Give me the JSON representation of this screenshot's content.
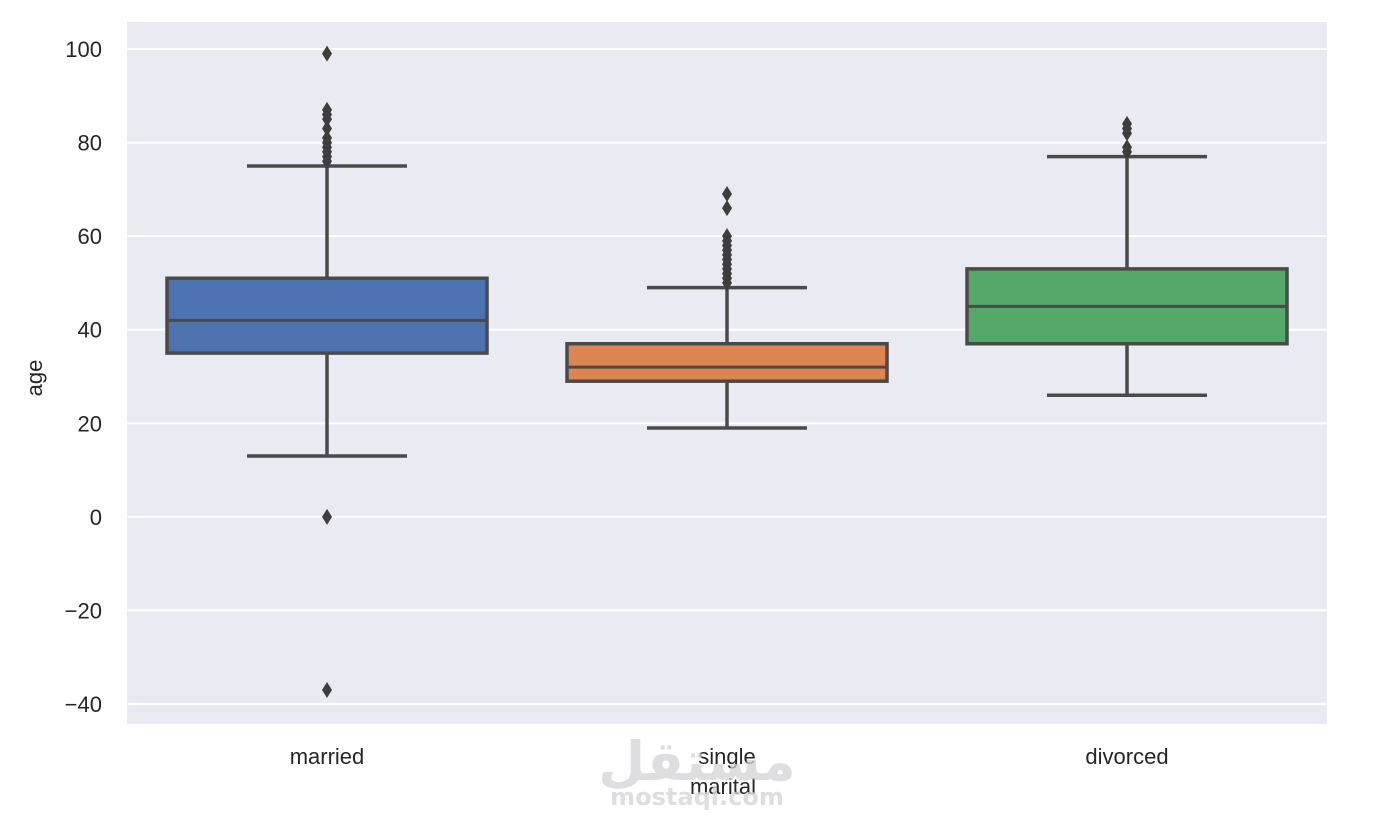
{
  "chart_data": {
    "type": "boxplot",
    "xlabel": "marital",
    "ylabel": "age",
    "ylim": [
      -44,
      104
    ],
    "yticks": [
      100,
      80,
      60,
      40,
      20,
      0,
      -20,
      -40
    ],
    "ytick_labels": [
      "100",
      "80",
      "60",
      "40",
      "20",
      "0",
      "−20",
      "−40"
    ],
    "grid": true,
    "categories": [
      "married",
      "single",
      "divorced"
    ],
    "boxes": [
      {
        "category": "married",
        "color": "#4c72b0",
        "whisker_low": 13,
        "q1": 35,
        "median": 42,
        "q3": 51,
        "whisker_high": 75,
        "outliers": [
          99,
          87,
          86,
          85,
          83,
          81,
          80,
          79,
          78,
          77,
          76,
          0,
          -37
        ]
      },
      {
        "category": "single",
        "color": "#dd8452",
        "whisker_low": 19,
        "q1": 29,
        "median": 32,
        "q3": 37,
        "whisker_high": 49,
        "outliers": [
          69,
          66,
          60,
          59,
          58,
          57,
          56,
          55,
          54,
          53,
          52,
          51,
          50
        ]
      },
      {
        "category": "divorced",
        "color": "#55a868",
        "whisker_low": 26,
        "q1": 37,
        "median": 45,
        "q3": 53,
        "whisker_high": 77,
        "outliers": [
          84,
          83,
          82,
          79,
          78
        ]
      }
    ]
  },
  "watermark": {
    "arabic": "مستقل",
    "latin": "mostaql.com"
  }
}
